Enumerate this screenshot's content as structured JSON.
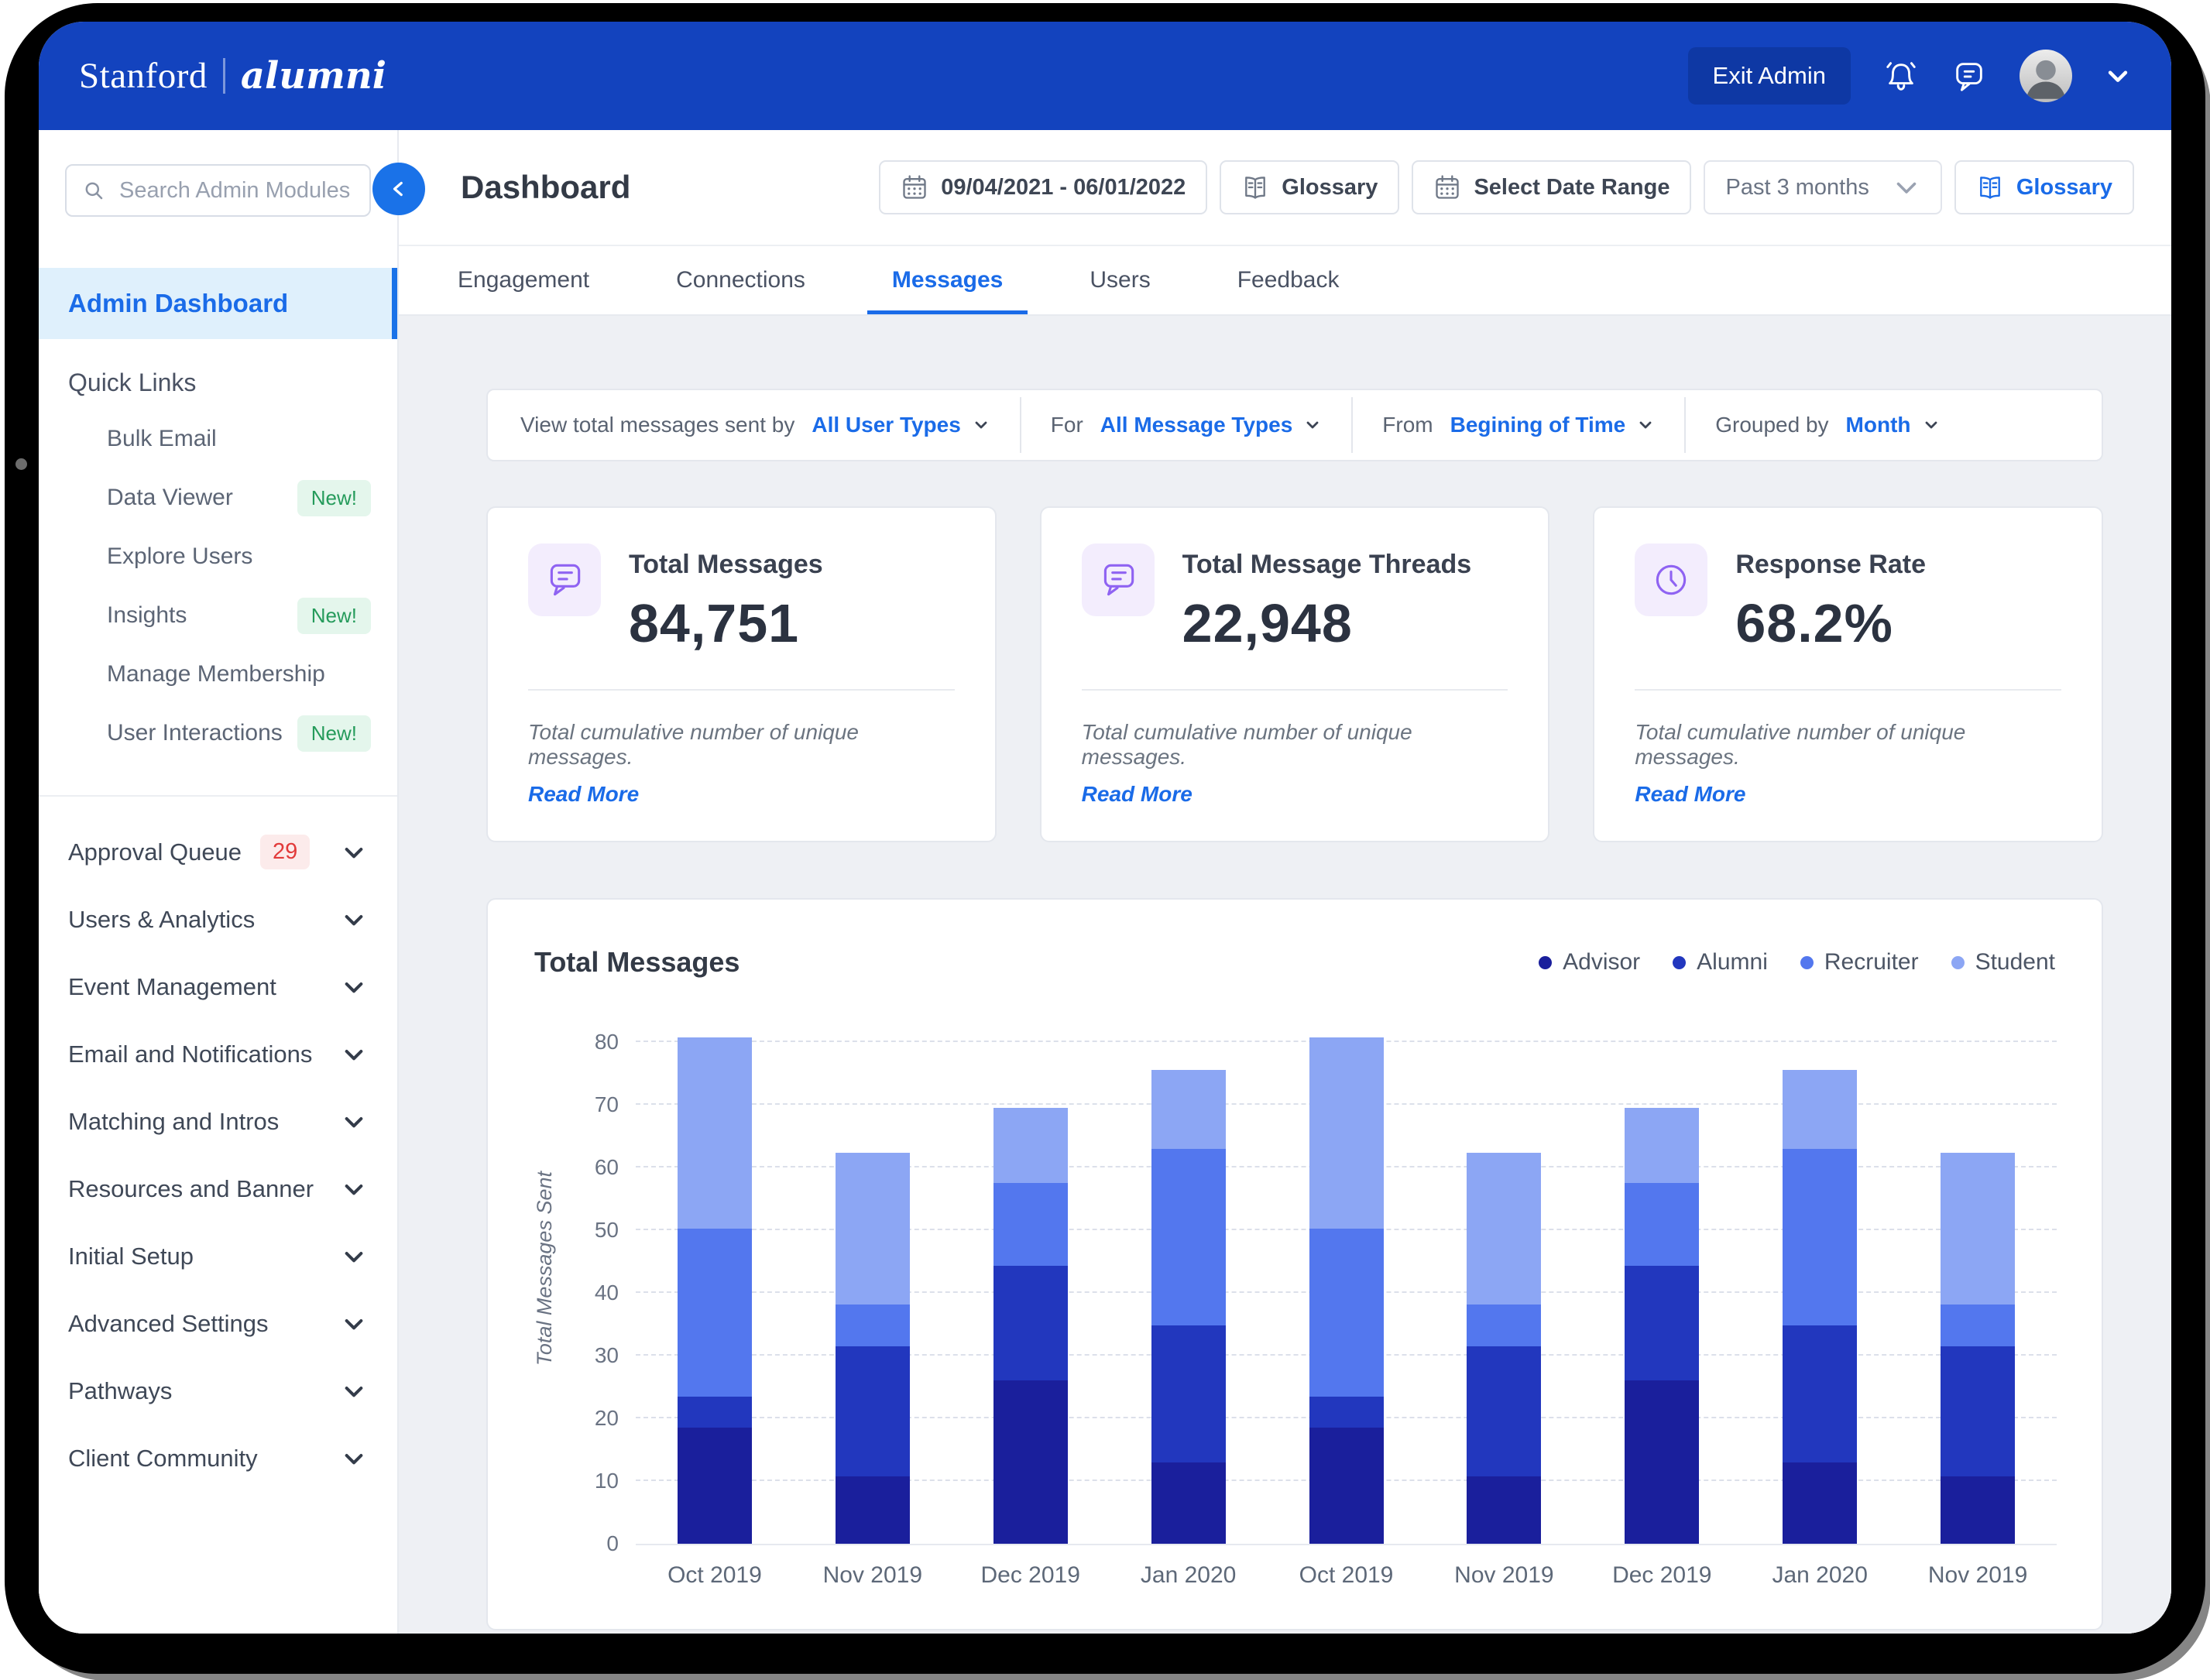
{
  "topbar": {
    "brand_primary": "Stanford",
    "brand_secondary": "alumni",
    "exit_admin_label": "Exit Admin"
  },
  "header": {
    "search_placeholder": "Search Admin Modules",
    "title": "Dashboard",
    "date_range_value": "09/04/2021 - 06/01/2022",
    "glossary_label": "Glossary",
    "select_date_range_label": "Select Date Range",
    "period_value": "Past 3 months",
    "glossary_link_label": "Glossary"
  },
  "sidebar": {
    "active_item": "Admin Dashboard",
    "quick_links_title": "Quick Links",
    "quick_links": [
      {
        "label": "Bulk Email"
      },
      {
        "label": "Data Viewer",
        "badge": "New!"
      },
      {
        "label": "Explore Users"
      },
      {
        "label": "Insights",
        "badge": "New!"
      },
      {
        "label": "Manage Membership"
      },
      {
        "label": "User Interactions",
        "badge": "New!"
      }
    ],
    "sections": [
      {
        "label": "Approval Queue",
        "badge": "29"
      },
      {
        "label": "Users & Analytics"
      },
      {
        "label": "Event Management"
      },
      {
        "label": "Email and Notifications"
      },
      {
        "label": "Matching and Intros"
      },
      {
        "label": "Resources and Banner"
      },
      {
        "label": "Initial Setup"
      },
      {
        "label": "Advanced Settings"
      },
      {
        "label": "Pathways"
      },
      {
        "label": "Client Community"
      }
    ]
  },
  "tabs": [
    {
      "label": "Engagement",
      "active": false
    },
    {
      "label": "Connections",
      "active": false
    },
    {
      "label": "Messages",
      "active": true
    },
    {
      "label": "Users",
      "active": false
    },
    {
      "label": "Feedback",
      "active": false
    }
  ],
  "filters": [
    {
      "label": "View total messages sent by",
      "value": "All User Types"
    },
    {
      "label": "For",
      "value": "All Message Types"
    },
    {
      "label": "From",
      "value": "Begining of Time"
    },
    {
      "label": "Grouped by",
      "value": "Month"
    }
  ],
  "stats": [
    {
      "icon": "message-icon",
      "title": "Total Messages",
      "value": "84,751",
      "note": "Total cumulative number of unique messages.",
      "link": "Read More"
    },
    {
      "icon": "message-icon",
      "title": "Total Message Threads",
      "value": "22,948",
      "note": "Total cumulative number of unique messages.",
      "link": "Read More"
    },
    {
      "icon": "clock-icon",
      "title": "Response Rate",
      "value": "68.2%",
      "note": "Total cumulative number of unique messages.",
      "link": "Read More"
    }
  ],
  "chart_data": {
    "type": "bar",
    "stacked": true,
    "title": "Total Messages",
    "ylabel": "Total Messages Sent",
    "ylim": [
      0,
      80
    ],
    "yticks": [
      0,
      10,
      20,
      30,
      40,
      50,
      60,
      70,
      80
    ],
    "grid": "dashed-horizontal",
    "legend_position": "top-right",
    "categories": [
      "Oct 2019",
      "Nov 2019",
      "Dec 2019",
      "Jan 2020",
      "Oct 2019",
      "Nov 2019",
      "Dec 2019",
      "Jan 2020",
      "Nov 2019"
    ],
    "series": [
      {
        "name": "Advisor",
        "color": "#1A1F9C",
        "values": [
          18.5,
          10.7,
          26.0,
          13.0,
          18.5,
          10.7,
          26.0,
          13.0,
          10.7
        ]
      },
      {
        "name": "Alumni",
        "color": "#2237BE",
        "values": [
          5.0,
          20.8,
          18.3,
          21.8,
          5.0,
          20.8,
          18.3,
          21.8,
          20.8
        ]
      },
      {
        "name": "Recruiter",
        "color": "#5377EE",
        "values": [
          26.8,
          6.7,
          13.2,
          28.2,
          26.8,
          6.7,
          13.2,
          28.2,
          6.7
        ]
      },
      {
        "name": "Student",
        "color": "#8CA6F4",
        "values": [
          30.4,
          24.1,
          12.0,
          12.5,
          30.4,
          24.1,
          12.0,
          12.5,
          24.1
        ]
      }
    ],
    "bar_totals": [
      80.7,
      62.3,
      69.5,
      75.5,
      80.7,
      62.3,
      69.5,
      75.5,
      62.3
    ]
  },
  "colors": {
    "topbar_blue": "#1343BE",
    "accent_blue": "#1A6BE8",
    "active_sidebar_bg": "#DFF0FC",
    "content_bg": "#EEF0F4",
    "badge_green": "#259B5B",
    "badge_red": "#E23B3B",
    "icon_purple": "#8F63F2"
  }
}
